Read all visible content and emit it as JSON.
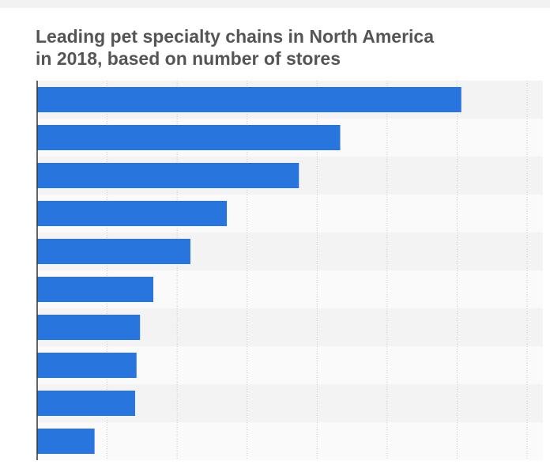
{
  "chart_data": {
    "type": "barh",
    "title": [
      "Leading pet specialty chains in North America",
      "in 2018, based on number of stores"
    ],
    "categories": [
      null,
      null,
      null,
      null,
      null,
      null,
      null,
      null,
      null,
      null
    ],
    "values": [
      6.06,
      4.33,
      3.74,
      2.71,
      2.19,
      1.66,
      1.47,
      1.42,
      1.4,
      0.82
    ],
    "color": "#2876dd",
    "xlim": [
      0,
      7
    ],
    "xticks": [
      0,
      1,
      2,
      3,
      4,
      5,
      6,
      7
    ],
    "grid": true
  }
}
